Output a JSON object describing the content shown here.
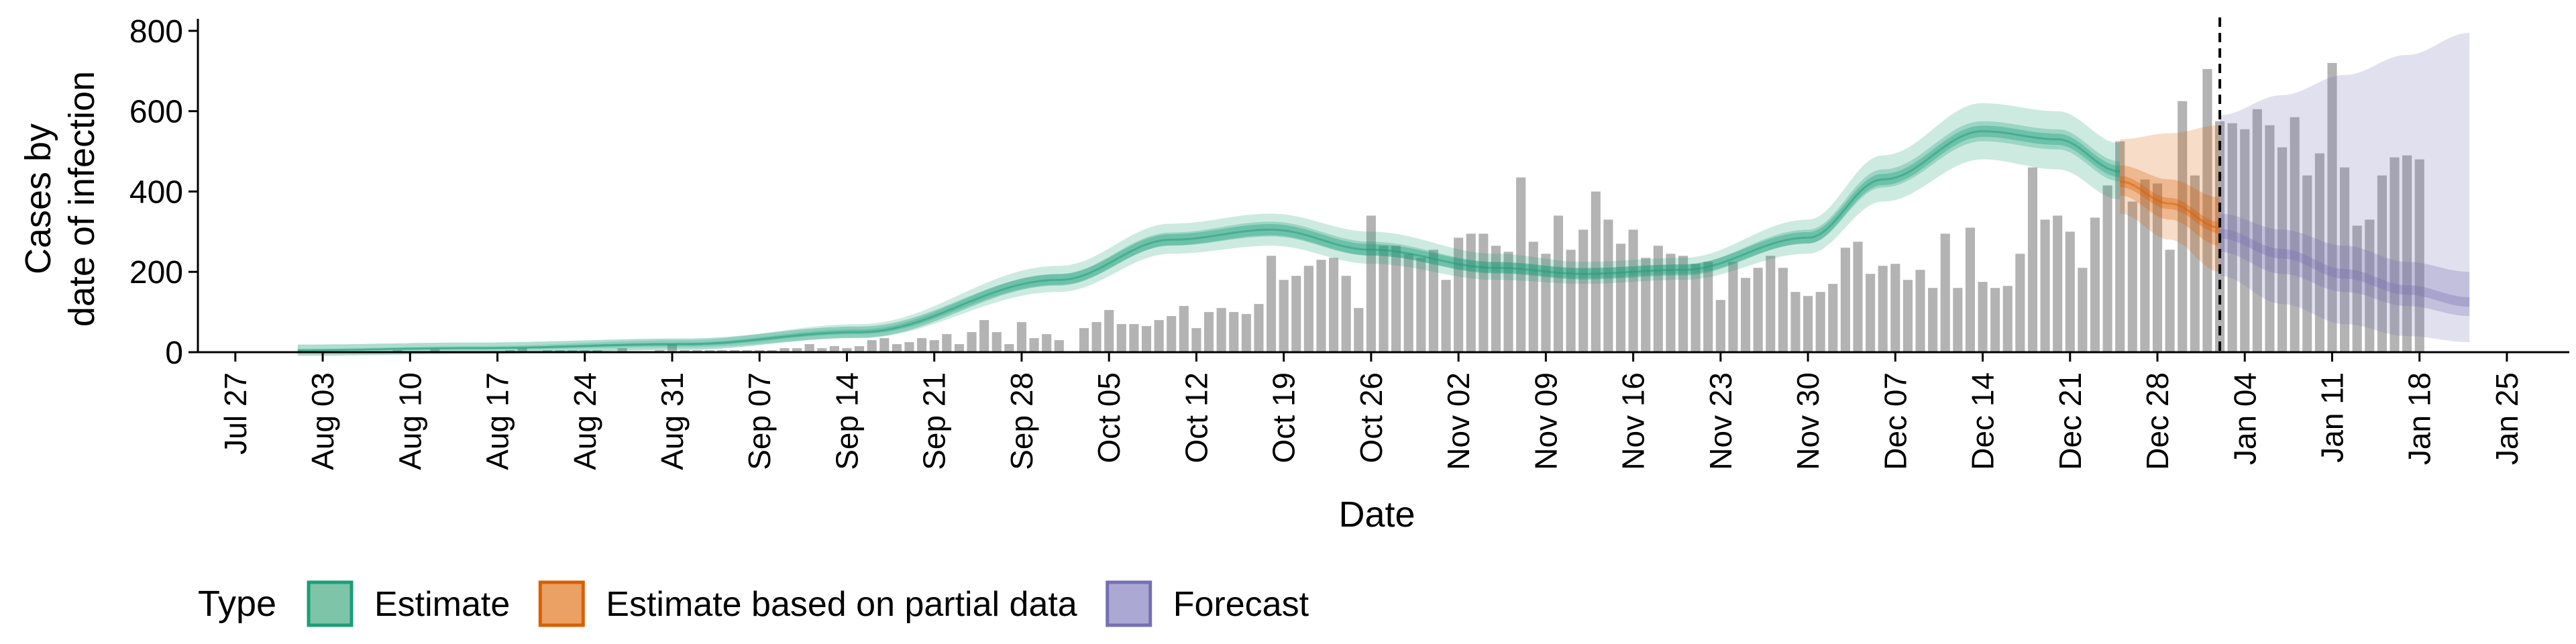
{
  "chart_data": {
    "type": "bar",
    "title": "",
    "xlabel": "Date",
    "ylabel_lines": [
      "Cases by",
      "date of infection"
    ],
    "ylim": [
      0,
      830
    ],
    "y_ticks": [
      0,
      200,
      400,
      600,
      800
    ],
    "y_tick_labels": [
      "0",
      "200",
      "400",
      "600",
      "800"
    ],
    "x_ticks": [
      {
        "date": "2020-07-27",
        "label": "Jul 27"
      },
      {
        "date": "2020-08-03",
        "label": "Aug 03"
      },
      {
        "date": "2020-08-10",
        "label": "Aug 10"
      },
      {
        "date": "2020-08-17",
        "label": "Aug 17"
      },
      {
        "date": "2020-08-24",
        "label": "Aug 24"
      },
      {
        "date": "2020-08-31",
        "label": "Aug 31"
      },
      {
        "date": "2020-09-07",
        "label": "Sep 07"
      },
      {
        "date": "2020-09-14",
        "label": "Sep 14"
      },
      {
        "date": "2020-09-21",
        "label": "Sep 21"
      },
      {
        "date": "2020-09-28",
        "label": "Sep 28"
      },
      {
        "date": "2020-10-05",
        "label": "Oct 05"
      },
      {
        "date": "2020-10-12",
        "label": "Oct 12"
      },
      {
        "date": "2020-10-19",
        "label": "Oct 19"
      },
      {
        "date": "2020-10-26",
        "label": "Oct 26"
      },
      {
        "date": "2020-11-02",
        "label": "Nov 02"
      },
      {
        "date": "2020-11-09",
        "label": "Nov 09"
      },
      {
        "date": "2020-11-16",
        "label": "Nov 16"
      },
      {
        "date": "2020-11-23",
        "label": "Nov 23"
      },
      {
        "date": "2020-11-30",
        "label": "Nov 30"
      },
      {
        "date": "2020-12-07",
        "label": "Dec 07"
      },
      {
        "date": "2020-12-14",
        "label": "Dec 14"
      },
      {
        "date": "2020-12-21",
        "label": "Dec 21"
      },
      {
        "date": "2020-12-28",
        "label": "Dec 28"
      },
      {
        "date": "2021-01-04",
        "label": "Jan 04"
      },
      {
        "date": "2021-01-11",
        "label": "Jan 11"
      },
      {
        "date": "2021-01-18",
        "label": "Jan 18"
      },
      {
        "date": "2021-01-25",
        "label": "Jan 25"
      }
    ],
    "x_range": [
      "2020-07-24",
      "2021-01-30"
    ],
    "vline_date": "2021-01-02",
    "bars": {
      "start_date": "2020-08-01",
      "color": "#b3b3b3",
      "values": [
        0,
        0,
        0,
        0,
        0,
        0,
        0,
        0,
        5,
        0,
        0,
        8,
        0,
        0,
        0,
        0,
        0,
        5,
        10,
        0,
        5,
        5,
        5,
        5,
        5,
        0,
        10,
        0,
        0,
        5,
        20,
        5,
        5,
        5,
        5,
        5,
        5,
        5,
        5,
        10,
        10,
        20,
        10,
        15,
        10,
        15,
        30,
        35,
        20,
        25,
        35,
        30,
        45,
        20,
        50,
        80,
        50,
        20,
        75,
        35,
        45,
        30,
        0,
        60,
        75,
        105,
        70,
        70,
        65,
        80,
        90,
        115,
        60,
        100,
        110,
        100,
        95,
        120,
        240,
        180,
        190,
        215,
        230,
        235,
        190,
        110,
        340,
        265,
        265,
        245,
        235,
        255,
        180,
        285,
        295,
        295,
        265,
        250,
        435,
        275,
        245,
        340,
        255,
        305,
        400,
        330,
        270,
        305,
        235,
        265,
        245,
        240,
        220,
        225,
        130,
        225,
        185,
        210,
        240,
        210,
        150,
        140,
        150,
        170,
        260,
        275,
        195,
        215,
        220,
        180,
        205,
        160,
        295,
        160,
        310,
        175,
        160,
        165,
        245,
        460,
        330,
        340,
        300,
        210,
        335,
        415,
        525,
        375,
        430,
        420,
        255,
        625,
        440,
        705,
        575,
        570,
        555,
        605,
        565,
        510,
        585,
        440,
        495,
        720,
        460,
        315,
        330,
        440,
        485,
        490,
        480
      ]
    },
    "series": [
      {
        "name": "Estimate",
        "color": "#1b9e77",
        "x_start": "2020-08-01",
        "x_end": "2020-12-25",
        "key_dates": [
          "2020-08-01",
          "2020-08-15",
          "2020-09-01",
          "2020-09-15",
          "2020-10-01",
          "2020-10-10",
          "2020-10-18",
          "2020-10-26",
          "2020-11-05",
          "2020-11-12",
          "2020-11-20",
          "2020-11-30",
          "2020-12-06",
          "2020-12-14",
          "2020-12-20",
          "2020-12-25"
        ],
        "median": [
          5,
          10,
          20,
          50,
          180,
          280,
          305,
          255,
          210,
          195,
          205,
          285,
          430,
          550,
          530,
          450
        ],
        "lower90": [
          3,
          6,
          12,
          35,
          150,
          245,
          265,
          220,
          180,
          170,
          180,
          245,
          375,
          480,
          455,
          380
        ],
        "upper90": [
          8,
          15,
          30,
          70,
          215,
          320,
          345,
          300,
          245,
          225,
          235,
          330,
          490,
          620,
          600,
          520
        ],
        "lower50": [
          4,
          8,
          16,
          45,
          168,
          265,
          288,
          240,
          198,
          184,
          195,
          270,
          410,
          525,
          505,
          425
        ],
        "upper50": [
          6,
          12,
          24,
          57,
          195,
          298,
          325,
          275,
          225,
          210,
          218,
          305,
          455,
          575,
          555,
          475
        ]
      },
      {
        "name": "Estimate based on partial data",
        "color": "#d95f02",
        "x_start": "2020-12-25",
        "x_end": "2021-01-02",
        "key_dates": [
          "2020-12-25",
          "2020-12-29",
          "2021-01-02"
        ],
        "median": [
          425,
          370,
          310
        ],
        "lower90": [
          345,
          280,
          200
        ],
        "upper90": [
          530,
          545,
          565
        ],
        "lower50": [
          390,
          330,
          265
        ],
        "upper50": [
          465,
          430,
          385
        ]
      },
      {
        "name": "Forecast",
        "color": "#7570b3",
        "x_start": "2021-01-02",
        "x_end": "2021-01-22",
        "key_dates": [
          "2021-01-02",
          "2021-01-07",
          "2021-01-12",
          "2021-01-17",
          "2021-01-22"
        ],
        "median": [
          295,
          245,
          195,
          155,
          125
        ],
        "lower90": [
          190,
          120,
          70,
          40,
          25
        ],
        "upper90": [
          590,
          640,
          690,
          740,
          795
        ],
        "lower50": [
          250,
          195,
          150,
          115,
          90
        ],
        "upper50": [
          345,
          305,
          265,
          225,
          200
        ]
      }
    ],
    "legend": {
      "title": "Type",
      "position": "bottom",
      "entries": [
        {
          "label": "Estimate",
          "fill": "#7dc4a8",
          "stroke": "#1b9e77"
        },
        {
          "label": "Estimate based on partial data",
          "fill": "#eba064",
          "stroke": "#d95f02"
        },
        {
          "label": "Forecast",
          "fill": "#aba8d4",
          "stroke": "#7570b3"
        }
      ]
    }
  }
}
